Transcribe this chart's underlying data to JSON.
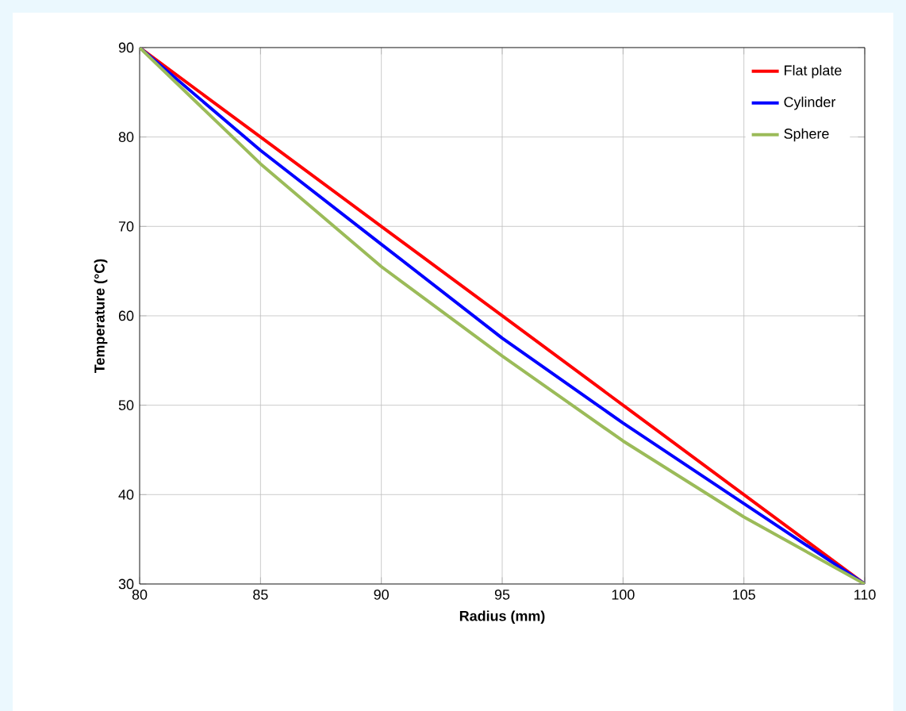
{
  "chart_data": {
    "type": "line",
    "xlabel": "Radius (mm)",
    "ylabel": "Temperature (°C)",
    "x": [
      80,
      85,
      90,
      95,
      100,
      105,
      110
    ],
    "series": [
      {
        "name": "Flat plate",
        "color": "#ff0000",
        "values": [
          90,
          80,
          70,
          60,
          50,
          40,
          30
        ]
      },
      {
        "name": "Cylinder",
        "color": "#0000ff",
        "values": [
          90,
          78.5,
          68,
          57.5,
          48,
          39,
          30
        ]
      },
      {
        "name": "Sphere",
        "color": "#9bbb59",
        "values": [
          90,
          77,
          65.5,
          55.5,
          46,
          37.5,
          30
        ]
      }
    ],
    "xlim": [
      80,
      110
    ],
    "xticks": [
      80,
      85,
      90,
      95,
      100,
      105,
      110
    ],
    "ylim": [
      30,
      90
    ],
    "yticks": [
      30,
      40,
      50,
      60,
      70,
      80,
      90
    ],
    "grid": true,
    "legend": "top right",
    "marker": "none",
    "line_style": "solid"
  }
}
